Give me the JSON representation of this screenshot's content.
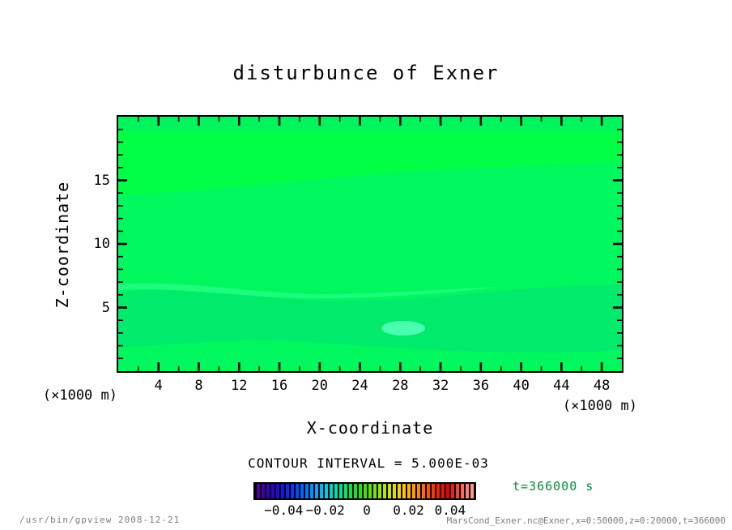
{
  "title": "disturbunce of Exner",
  "plot": {
    "xlabel": "X-coordinate",
    "ylabel": "Z-coordinate",
    "x_unit_left": "(×1000 m)",
    "x_unit_right": "(×1000 m)",
    "x_range": [
      0,
      50
    ],
    "y_range": [
      0,
      20
    ],
    "x_major_ticks": [
      4,
      8,
      12,
      16,
      20,
      24,
      28,
      32,
      36,
      40,
      44,
      48
    ],
    "x_minor_step": 2,
    "y_major_ticks": [
      5,
      10,
      15
    ],
    "y_minor_step": 1
  },
  "contour_text": "CONTOUR INTERVAL = 5.000E-03",
  "time_label": "t=366000 s",
  "footer": {
    "left": "/usr/bin/gpview  2008-12-21",
    "right": "MarsCond_Exner.nc@Exner,x=0:50000,z=0:20000,t=366000"
  },
  "chart_data": {
    "type": "heatmap",
    "subtype": "filled_contour",
    "title": "disturbunce of Exner",
    "xlabel": "X-coordinate",
    "ylabel": "Z-coordinate",
    "x_axis_unit": "(×1000 m)",
    "y_axis_unit": "(×1000 m)",
    "x_range_m": [
      0,
      50000
    ],
    "z_range_m": [
      0,
      20000
    ],
    "time_s": 366000,
    "contour_interval": 0.005,
    "field_summary": "Exner-function disturbance is ~0 over the whole domain (all values within one ±0.005 contour bin, rendered green); faintly brighter band near z≈15.5-19, faintly darker band near z≈2-5.5 with a small mint anomaly patch centered near x≈28, z≈3.3",
    "value_range_est": [
      -0.005,
      0.005
    ],
    "grid": false,
    "fill_colors": {
      "base": "#00F85E",
      "top_strip": "#00F55C",
      "upper_band": "#00FF45",
      "lower_band": "#00EB6C",
      "streak": "#3CFFA0",
      "anomaly_ellipse": "#49FFB2"
    },
    "frame_color": "#000000",
    "colorbar": {
      "position": "bottom",
      "range": [
        -0.0545,
        0.0525
      ],
      "tick_values": [
        -0.04,
        -0.02,
        0,
        0.02,
        0.04
      ],
      "tick_labels": [
        "−0.04",
        "−0.02",
        "0",
        "0.02",
        "0.04"
      ],
      "style": "thin vertical color stripes separated by black",
      "colors": [
        "#5a00a0",
        "#4500b4",
        "#2d00c8",
        "#1a14e1",
        "#0a32f0",
        "#0055ff",
        "#0080ff",
        "#00a8ff",
        "#00c8e6",
        "#00ddbb",
        "#00e682",
        "#00e646",
        "#1ee600",
        "#55e600",
        "#8ce600",
        "#c3e600",
        "#e6dc00",
        "#ffc800",
        "#ffa000",
        "#ff7300",
        "#ff4600",
        "#f01e00",
        "#e60000",
        "#f04632",
        "#ff7d6e",
        "#ffa096"
      ]
    }
  }
}
